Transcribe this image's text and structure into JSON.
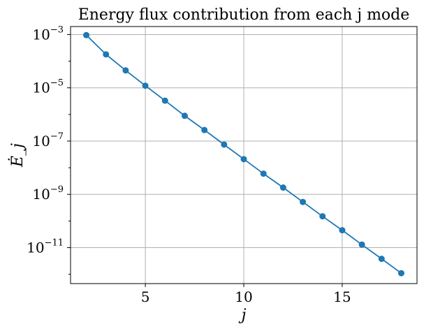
{
  "chart_data": {
    "type": "line",
    "title": "Energy flux contribution from each j mode",
    "xlabel": "j",
    "ylabel": "Ė_j",
    "x_scale": "linear",
    "y_scale": "log",
    "xlim": [
      1.2,
      18.8
    ],
    "ylim_log10": [
      -12.35,
      -2.7
    ],
    "x_ticks": [
      5,
      10,
      15
    ],
    "x_tick_labels": [
      "5",
      "10",
      "15"
    ],
    "y_ticks_log10": [
      -11,
      -9,
      -7,
      -5,
      -3
    ],
    "y_tick_labels": [
      {
        "base": "10",
        "exp": "−11"
      },
      {
        "base": "10",
        "exp": "−9"
      },
      {
        "base": "10",
        "exp": "−7"
      },
      {
        "base": "10",
        "exp": "−5"
      },
      {
        "base": "10",
        "exp": "−3"
      }
    ],
    "grid": true,
    "series": [
      {
        "color": "#1f77b4",
        "marker": "circle",
        "x": [
          2,
          3,
          4,
          5,
          6,
          7,
          8,
          9,
          10,
          11,
          12,
          13,
          14,
          15,
          16,
          17,
          18
        ],
        "y": [
          0.00095,
          0.00018,
          4.5e-05,
          1.2e-05,
          3.3e-06,
          8.9e-07,
          2.6e-07,
          7.4e-08,
          2.1e-08,
          6e-09,
          1.8e-09,
          5.2e-10,
          1.5e-10,
          4.5e-11,
          1.3e-11,
          3.8e-12,
          1.1e-12
        ]
      }
    ]
  }
}
